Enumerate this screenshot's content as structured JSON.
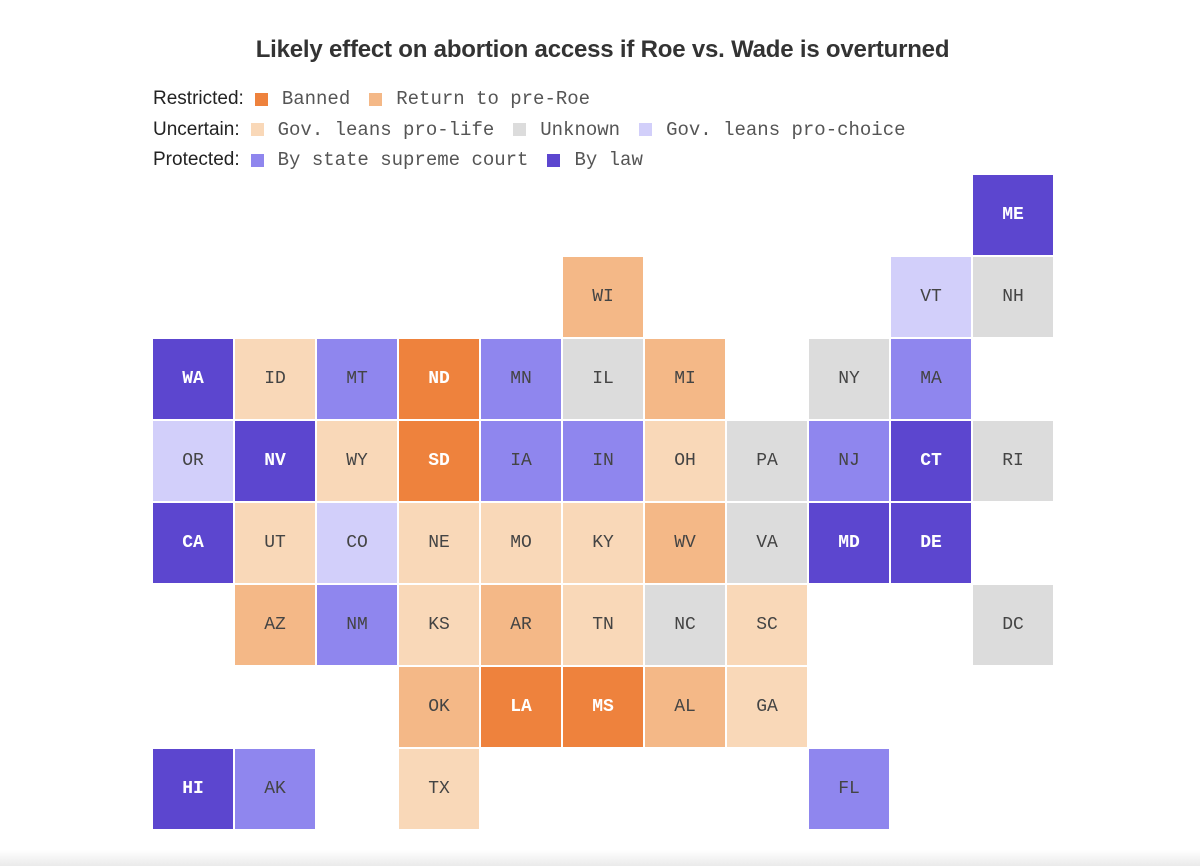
{
  "title": "Likely effect on abortion access if Roe vs. Wade is overturned",
  "categories": {
    "banned": {
      "label": "Banned",
      "color": "#ee823d",
      "text": "light"
    },
    "pre_roe": {
      "label": "Return to pre-Roe",
      "color": "#f4b887",
      "text": "dark"
    },
    "leans_life": {
      "label": "Gov. leans pro-life",
      "color": "#f9d8b8",
      "text": "dark"
    },
    "unknown": {
      "label": "Unknown",
      "color": "#dcdcdc",
      "text": "dark"
    },
    "leans_choice": {
      "label": "Gov. leans pro-choice",
      "color": "#d2cffa",
      "text": "dark"
    },
    "court": {
      "label": "By state supreme court",
      "color": "#8f86ee",
      "text": "dark"
    },
    "law": {
      "label": "By law",
      "color": "#5c46cf",
      "text": "light"
    }
  },
  "legend": [
    {
      "label": "Restricted:",
      "items": [
        "banned",
        "pre_roe"
      ]
    },
    {
      "label": "Uncertain:",
      "items": [
        "leans_life",
        "unknown",
        "leans_choice"
      ]
    },
    {
      "label": "Protected:",
      "items": [
        "court",
        "law"
      ]
    }
  ],
  "states": [
    {
      "abbr": "ME",
      "row": 0,
      "col": 10,
      "cat": "law"
    },
    {
      "abbr": "WI",
      "row": 1,
      "col": 5,
      "cat": "pre_roe"
    },
    {
      "abbr": "VT",
      "row": 1,
      "col": 9,
      "cat": "leans_choice"
    },
    {
      "abbr": "NH",
      "row": 1,
      "col": 10,
      "cat": "unknown"
    },
    {
      "abbr": "WA",
      "row": 2,
      "col": 0,
      "cat": "law"
    },
    {
      "abbr": "ID",
      "row": 2,
      "col": 1,
      "cat": "leans_life"
    },
    {
      "abbr": "MT",
      "row": 2,
      "col": 2,
      "cat": "court"
    },
    {
      "abbr": "ND",
      "row": 2,
      "col": 3,
      "cat": "banned"
    },
    {
      "abbr": "MN",
      "row": 2,
      "col": 4,
      "cat": "court"
    },
    {
      "abbr": "IL",
      "row": 2,
      "col": 5,
      "cat": "unknown"
    },
    {
      "abbr": "MI",
      "row": 2,
      "col": 6,
      "cat": "pre_roe"
    },
    {
      "abbr": "NY",
      "row": 2,
      "col": 8,
      "cat": "unknown"
    },
    {
      "abbr": "MA",
      "row": 2,
      "col": 9,
      "cat": "court"
    },
    {
      "abbr": "OR",
      "row": 3,
      "col": 0,
      "cat": "leans_choice"
    },
    {
      "abbr": "NV",
      "row": 3,
      "col": 1,
      "cat": "law"
    },
    {
      "abbr": "WY",
      "row": 3,
      "col": 2,
      "cat": "leans_life"
    },
    {
      "abbr": "SD",
      "row": 3,
      "col": 3,
      "cat": "banned"
    },
    {
      "abbr": "IA",
      "row": 3,
      "col": 4,
      "cat": "court"
    },
    {
      "abbr": "IN",
      "row": 3,
      "col": 5,
      "cat": "court"
    },
    {
      "abbr": "OH",
      "row": 3,
      "col": 6,
      "cat": "leans_life"
    },
    {
      "abbr": "PA",
      "row": 3,
      "col": 7,
      "cat": "unknown"
    },
    {
      "abbr": "NJ",
      "row": 3,
      "col": 8,
      "cat": "court"
    },
    {
      "abbr": "CT",
      "row": 3,
      "col": 9,
      "cat": "law"
    },
    {
      "abbr": "RI",
      "row": 3,
      "col": 10,
      "cat": "unknown"
    },
    {
      "abbr": "CA",
      "row": 4,
      "col": 0,
      "cat": "law"
    },
    {
      "abbr": "UT",
      "row": 4,
      "col": 1,
      "cat": "leans_life"
    },
    {
      "abbr": "CO",
      "row": 4,
      "col": 2,
      "cat": "leans_choice"
    },
    {
      "abbr": "NE",
      "row": 4,
      "col": 3,
      "cat": "leans_life"
    },
    {
      "abbr": "MO",
      "row": 4,
      "col": 4,
      "cat": "leans_life"
    },
    {
      "abbr": "KY",
      "row": 4,
      "col": 5,
      "cat": "leans_life"
    },
    {
      "abbr": "WV",
      "row": 4,
      "col": 6,
      "cat": "pre_roe"
    },
    {
      "abbr": "VA",
      "row": 4,
      "col": 7,
      "cat": "unknown"
    },
    {
      "abbr": "MD",
      "row": 4,
      "col": 8,
      "cat": "law"
    },
    {
      "abbr": "DE",
      "row": 4,
      "col": 9,
      "cat": "law"
    },
    {
      "abbr": "AZ",
      "row": 5,
      "col": 1,
      "cat": "pre_roe"
    },
    {
      "abbr": "NM",
      "row": 5,
      "col": 2,
      "cat": "court"
    },
    {
      "abbr": "KS",
      "row": 5,
      "col": 3,
      "cat": "leans_life"
    },
    {
      "abbr": "AR",
      "row": 5,
      "col": 4,
      "cat": "pre_roe"
    },
    {
      "abbr": "TN",
      "row": 5,
      "col": 5,
      "cat": "leans_life"
    },
    {
      "abbr": "NC",
      "row": 5,
      "col": 6,
      "cat": "unknown"
    },
    {
      "abbr": "SC",
      "row": 5,
      "col": 7,
      "cat": "leans_life"
    },
    {
      "abbr": "DC",
      "row": 5,
      "col": 10,
      "cat": "unknown"
    },
    {
      "abbr": "OK",
      "row": 6,
      "col": 3,
      "cat": "pre_roe"
    },
    {
      "abbr": "LA",
      "row": 6,
      "col": 4,
      "cat": "banned"
    },
    {
      "abbr": "MS",
      "row": 6,
      "col": 5,
      "cat": "banned"
    },
    {
      "abbr": "AL",
      "row": 6,
      "col": 6,
      "cat": "pre_roe"
    },
    {
      "abbr": "GA",
      "row": 6,
      "col": 7,
      "cat": "leans_life"
    },
    {
      "abbr": "HI",
      "row": 7,
      "col": 0,
      "cat": "law"
    },
    {
      "abbr": "AK",
      "row": 7,
      "col": 1,
      "cat": "court"
    },
    {
      "abbr": "TX",
      "row": 7,
      "col": 3,
      "cat": "leans_life"
    },
    {
      "abbr": "FL",
      "row": 7,
      "col": 8,
      "cat": "court"
    }
  ]
}
